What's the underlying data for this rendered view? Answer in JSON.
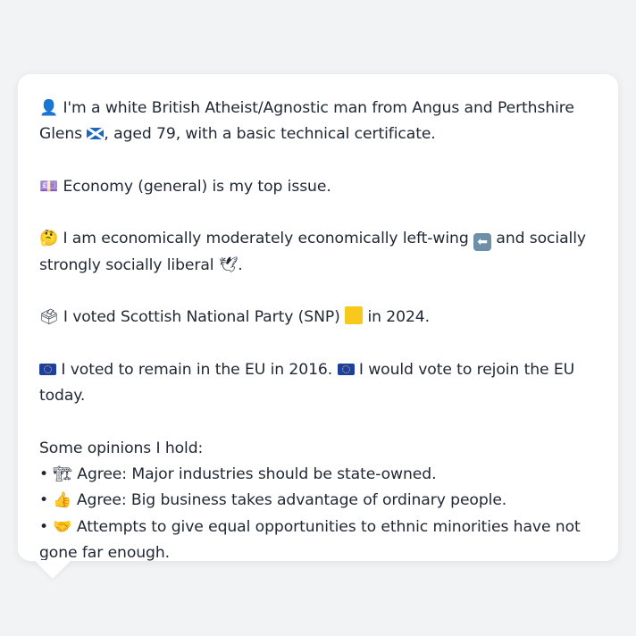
{
  "profile": {
    "intro": {
      "icon": "person-silhouette-icon",
      "text_before": "I'm a white British Atheist/Agnostic man from Angus and Perthshire Glens",
      "flag": "scotland-flag-icon",
      "text_after": ", aged 79, with a basic technical certificate."
    },
    "top_issue": {
      "icon": "money-icon",
      "text": "Economy (general) is my top issue."
    },
    "ideology": {
      "icon": "thinking-face-icon",
      "text_a": "I am economically moderately economically left-wing",
      "left_icon": "left-arrow-icon",
      "text_b": "and socially strongly socially liberal",
      "dove_icon": "dove-icon",
      "text_c": "."
    },
    "vote_2024": {
      "icon": "ballot-box-icon",
      "text_a": "I voted Scottish National Party (SNP)",
      "party_color": "#f8c81c",
      "text_b": "in 2024."
    },
    "eu": {
      "icon": "eu-flag-icon",
      "text_a": "I voted to remain in the EU in 2016.",
      "text_b": "I would vote to rejoin the EU today."
    },
    "opinions_header": "Some opinions I hold:",
    "opinions": [
      {
        "bullet": "•",
        "icon": "construction-crane-icon",
        "text": "Agree: Major industries should be state-owned."
      },
      {
        "bullet": "•",
        "icon": "thumbs-up-icon",
        "text": "Agree: Big business takes advantage of ordinary people."
      },
      {
        "bullet": "•",
        "icon": "handshake-icon",
        "text": "Attempts to give equal opportunities to ethnic minorities have not gone far enough."
      }
    ]
  },
  "colors": {
    "background": "#f2f3f5",
    "bubble": "#ffffff",
    "text": "#1f2733"
  }
}
